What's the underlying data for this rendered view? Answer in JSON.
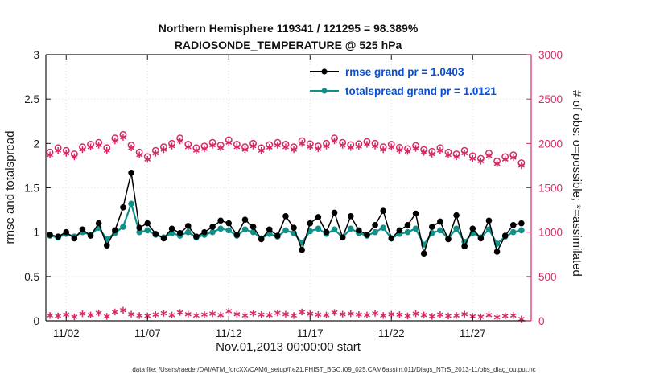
{
  "titles": {
    "line1": "Northern Hemisphere 119341 / 121295 = 98.389%",
    "line2": "RADIOSONDE_TEMPERATURE @ 525 hPa"
  },
  "caption": "data file: /Users/raeder/DAI/ATM_forcXX/CAM6_setup/f.e21.FHIST_BGC.f09_025.CAM6assim.011/Diags_NTrS_2013-11/obs_diag_output.nc",
  "colors": {
    "rmse": "#000000",
    "totalspread": "#0f9188",
    "obs": "#d62a64",
    "legend_text": "#0550d8",
    "grid": "#dedede",
    "spine": "#1a1a1a"
  },
  "chart_data": {
    "type": "line",
    "xlabel": "Nov.01,2013 00:00:00 start",
    "ylabel_left": "rmse and totalspread",
    "ylabel_right": "# of obs: o=possible; *=assimilated",
    "xlim": [
      0.75,
      30.6
    ],
    "ylim_left": [
      0,
      3
    ],
    "ylim_right": [
      0,
      3000
    ],
    "xticks": [
      {
        "value": 2,
        "label": "11/02"
      },
      {
        "value": 7,
        "label": "11/07"
      },
      {
        "value": 12,
        "label": "11/12"
      },
      {
        "value": 17,
        "label": "11/17"
      },
      {
        "value": 22,
        "label": "11/22"
      },
      {
        "value": 27,
        "label": "11/27"
      }
    ],
    "yticks_left": [
      {
        "v": 0,
        "label": "0"
      },
      {
        "v": 0.5,
        "label": "0.5"
      },
      {
        "v": 1,
        "label": "1"
      },
      {
        "v": 1.5,
        "label": "1.5"
      },
      {
        "v": 2,
        "label": "2"
      },
      {
        "v": 2.5,
        "label": "2.5"
      },
      {
        "v": 3,
        "label": "3"
      }
    ],
    "yticks_right": [
      {
        "v": 0,
        "label": "0"
      },
      {
        "v": 500,
        "label": "500"
      },
      {
        "v": 1000,
        "label": "1000"
      },
      {
        "v": 1500,
        "label": "1500"
      },
      {
        "v": 2000,
        "label": "2000"
      },
      {
        "v": 2500,
        "label": "2500"
      },
      {
        "v": 3000,
        "label": "3000"
      }
    ],
    "x": [
      1,
      1.5,
      2,
      2.5,
      3,
      3.5,
      4,
      4.5,
      5,
      5.5,
      6,
      6.5,
      7,
      7.5,
      8,
      8.5,
      9,
      9.5,
      10,
      10.5,
      11,
      11.5,
      12,
      12.5,
      13,
      13.5,
      14,
      14.5,
      15,
      15.5,
      16,
      16.5,
      17,
      17.5,
      18,
      18.5,
      19,
      19.5,
      20,
      20.5,
      21,
      21.5,
      22,
      22.5,
      23,
      23.5,
      24,
      24.5,
      25,
      25.5,
      26,
      26.5,
      27,
      27.5,
      28,
      28.5,
      29,
      29.5,
      30
    ],
    "series": [
      {
        "name": "num_obs_possible",
        "axis": "right",
        "marker": "circle-open",
        "line": false,
        "color": "#d62a64",
        "values": [
          1900,
          1950,
          1920,
          1880,
          1960,
          1990,
          2010,
          1950,
          2060,
          2100,
          1980,
          1900,
          1850,
          1920,
          1960,
          2000,
          2060,
          1990,
          1950,
          1970,
          2010,
          1980,
          2040,
          1990,
          1960,
          2000,
          1950,
          1985,
          2010,
          1990,
          1960,
          2030,
          1995,
          1970,
          2000,
          2060,
          2010,
          1985,
          1995,
          2020,
          2000,
          1960,
          1990,
          1955,
          1940,
          1975,
          1930,
          1910,
          1950,
          1900,
          1880,
          1920,
          1860,
          1830,
          1890,
          1800,
          1850,
          1870,
          1780
        ]
      },
      {
        "name": "num_obs_assimilated",
        "axis": "right",
        "marker": "asterisk",
        "line": false,
        "color": "#d62a64",
        "values": [
          1870,
          1920,
          1890,
          1850,
          1930,
          1960,
          1980,
          1920,
          2030,
          2070,
          1950,
          1870,
          1820,
          1890,
          1930,
          1970,
          2030,
          1960,
          1920,
          1940,
          1980,
          1950,
          2010,
          1960,
          1930,
          1970,
          1920,
          1955,
          1980,
          1960,
          1930,
          2000,
          1965,
          1940,
          1970,
          2030,
          1980,
          1955,
          1965,
          1990,
          1970,
          1930,
          1960,
          1925,
          1910,
          1945,
          1900,
          1880,
          1920,
          1870,
          1850,
          1890,
          1830,
          1800,
          1860,
          1770,
          1820,
          1840,
          1750
        ]
      },
      {
        "name": "num_obs_lower_band",
        "axis": "right",
        "marker": "asterisk",
        "line": false,
        "color": "#d62a64",
        "values": [
          60,
          55,
          70,
          45,
          80,
          65,
          90,
          50,
          100,
          120,
          75,
          60,
          55,
          70,
          85,
          65,
          95,
          75,
          60,
          70,
          80,
          65,
          110,
          75,
          60,
          85,
          70,
          65,
          90,
          75,
          60,
          100,
          80,
          70,
          65,
          95,
          75,
          80,
          70,
          65,
          85,
          60,
          75,
          70,
          55,
          80,
          65,
          50,
          70,
          55,
          60,
          75,
          50,
          45,
          65,
          40,
          55,
          60,
          20
        ]
      },
      {
        "name": "totalspread",
        "axis": "left",
        "marker": "dot",
        "line": true,
        "width": 2.2,
        "color": "#0f9188",
        "values": [
          0.96,
          0.94,
          0.98,
          0.95,
          1.0,
          0.97,
          1.05,
          0.92,
          0.99,
          1.06,
          1.32,
          1.0,
          1.02,
          0.97,
          0.94,
          0.99,
          0.96,
          1.0,
          0.94,
          0.97,
          1.0,
          1.04,
          1.02,
          0.96,
          1.03,
          1.0,
          0.93,
          0.98,
          0.95,
          1.02,
          0.99,
          0.88,
          1.01,
          1.04,
          0.98,
          1.03,
          0.94,
          1.04,
          0.99,
          0.96,
          1.0,
          1.05,
          0.93,
          0.98,
          1.0,
          1.04,
          0.86,
          0.99,
          1.02,
          0.93,
          1.04,
          0.89,
          0.99,
          0.94,
          1.03,
          0.87,
          0.95,
          1.0,
          1.02
        ]
      },
      {
        "name": "rmse",
        "axis": "left",
        "marker": "dot",
        "line": true,
        "width": 1.5,
        "color": "#000000",
        "values": [
          0.97,
          0.95,
          1.0,
          0.93,
          1.03,
          0.96,
          1.1,
          0.85,
          1.02,
          1.28,
          1.67,
          1.05,
          1.1,
          0.98,
          0.93,
          1.04,
          0.99,
          1.07,
          0.95,
          1.0,
          1.06,
          1.13,
          1.1,
          0.97,
          1.14,
          1.06,
          0.92,
          1.03,
          0.96,
          1.18,
          1.05,
          0.8,
          1.1,
          1.17,
          1.0,
          1.22,
          0.94,
          1.18,
          1.02,
          0.97,
          1.08,
          1.24,
          0.93,
          1.02,
          1.08,
          1.21,
          0.76,
          1.06,
          1.12,
          0.92,
          1.19,
          0.84,
          1.04,
          0.93,
          1.13,
          0.78,
          0.96,
          1.08,
          1.1
        ]
      }
    ],
    "legend": [
      {
        "label": "rmse grand pr = 1.0403",
        "color": "#000000"
      },
      {
        "label": "totalspread grand pr = 1.0121",
        "color": "#0f9188"
      }
    ],
    "legend_position": "upper-center-right",
    "grid": true
  }
}
